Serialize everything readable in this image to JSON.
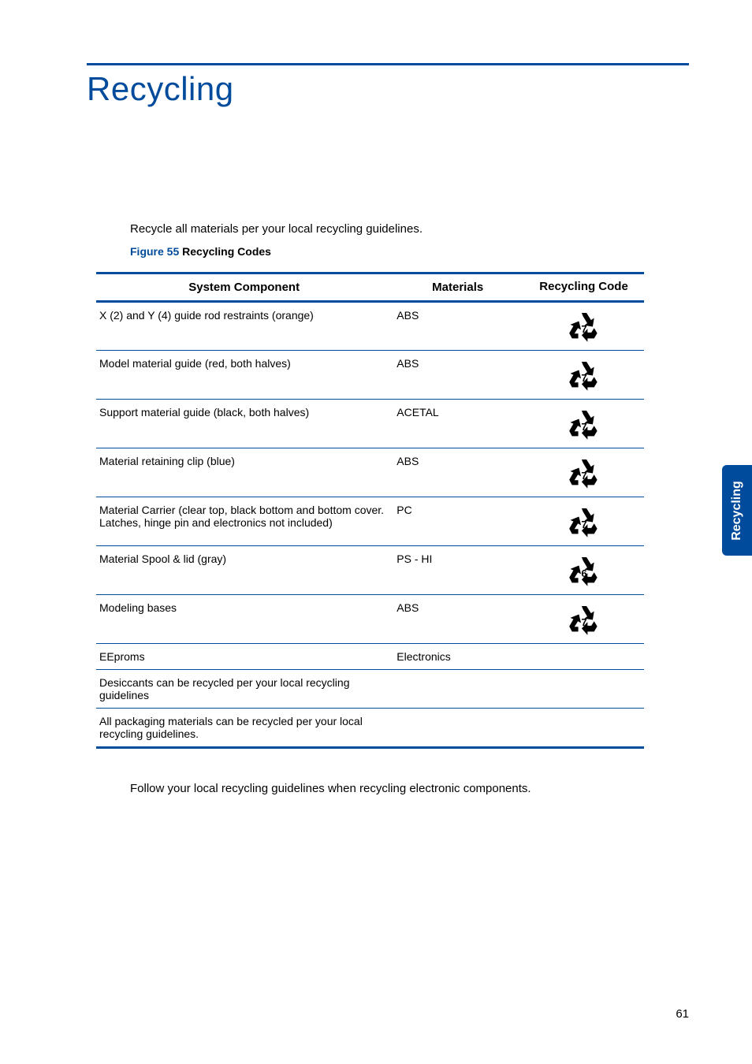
{
  "page": {
    "title": "Recycling",
    "intro": "Recycle all materials per your local recycling guidelines.",
    "figure_prefix": "Figure 55",
    "figure_name": " Recycling Codes",
    "footnote": "Follow your local recycling guidelines when recycling electronic components.",
    "side_tab": "Recycling",
    "page_number": "61"
  },
  "table": {
    "headers": {
      "component": "System Component",
      "materials": "Materials",
      "code": "Recycling Code"
    },
    "rows": [
      {
        "component": "X (2) and Y (4) guide rod restraints (orange)",
        "materials": "ABS",
        "code_digit": "7",
        "has_icon": true
      },
      {
        "component": "Model material guide (red, both halves)",
        "materials": "ABS",
        "code_digit": "7",
        "has_icon": true
      },
      {
        "component": "Support material guide (black, both halves)",
        "materials": "ACETAL",
        "code_digit": "7",
        "has_icon": true
      },
      {
        "component": "Material retaining clip (blue)",
        "materials": "ABS",
        "code_digit": "7",
        "has_icon": true
      },
      {
        "component": "Material Carrier (clear top, black bottom and bottom cover. Latches, hinge pin and electronics not included)",
        "materials": "PC",
        "code_digit": "7",
        "has_icon": true
      },
      {
        "component": "Material Spool & lid (gray)",
        "materials": "PS - HI",
        "code_digit": "6",
        "has_icon": true
      },
      {
        "component": "Modeling bases",
        "materials": "ABS",
        "code_digit": "7",
        "has_icon": true
      },
      {
        "component": "EEproms",
        "materials": "Electronics",
        "code_digit": "",
        "has_icon": false
      },
      {
        "component": "Desiccants can be recycled per your local recycling guidelines",
        "materials": "",
        "code_digit": "",
        "has_icon": false
      },
      {
        "component": "All packaging materials can be recycled per your local recycling guidelines.",
        "materials": "",
        "code_digit": "",
        "has_icon": false
      }
    ]
  },
  "style": {
    "brand_color": "#004b9b",
    "icon_stroke": "#000000",
    "icon_stroke_width": 3.2
  }
}
